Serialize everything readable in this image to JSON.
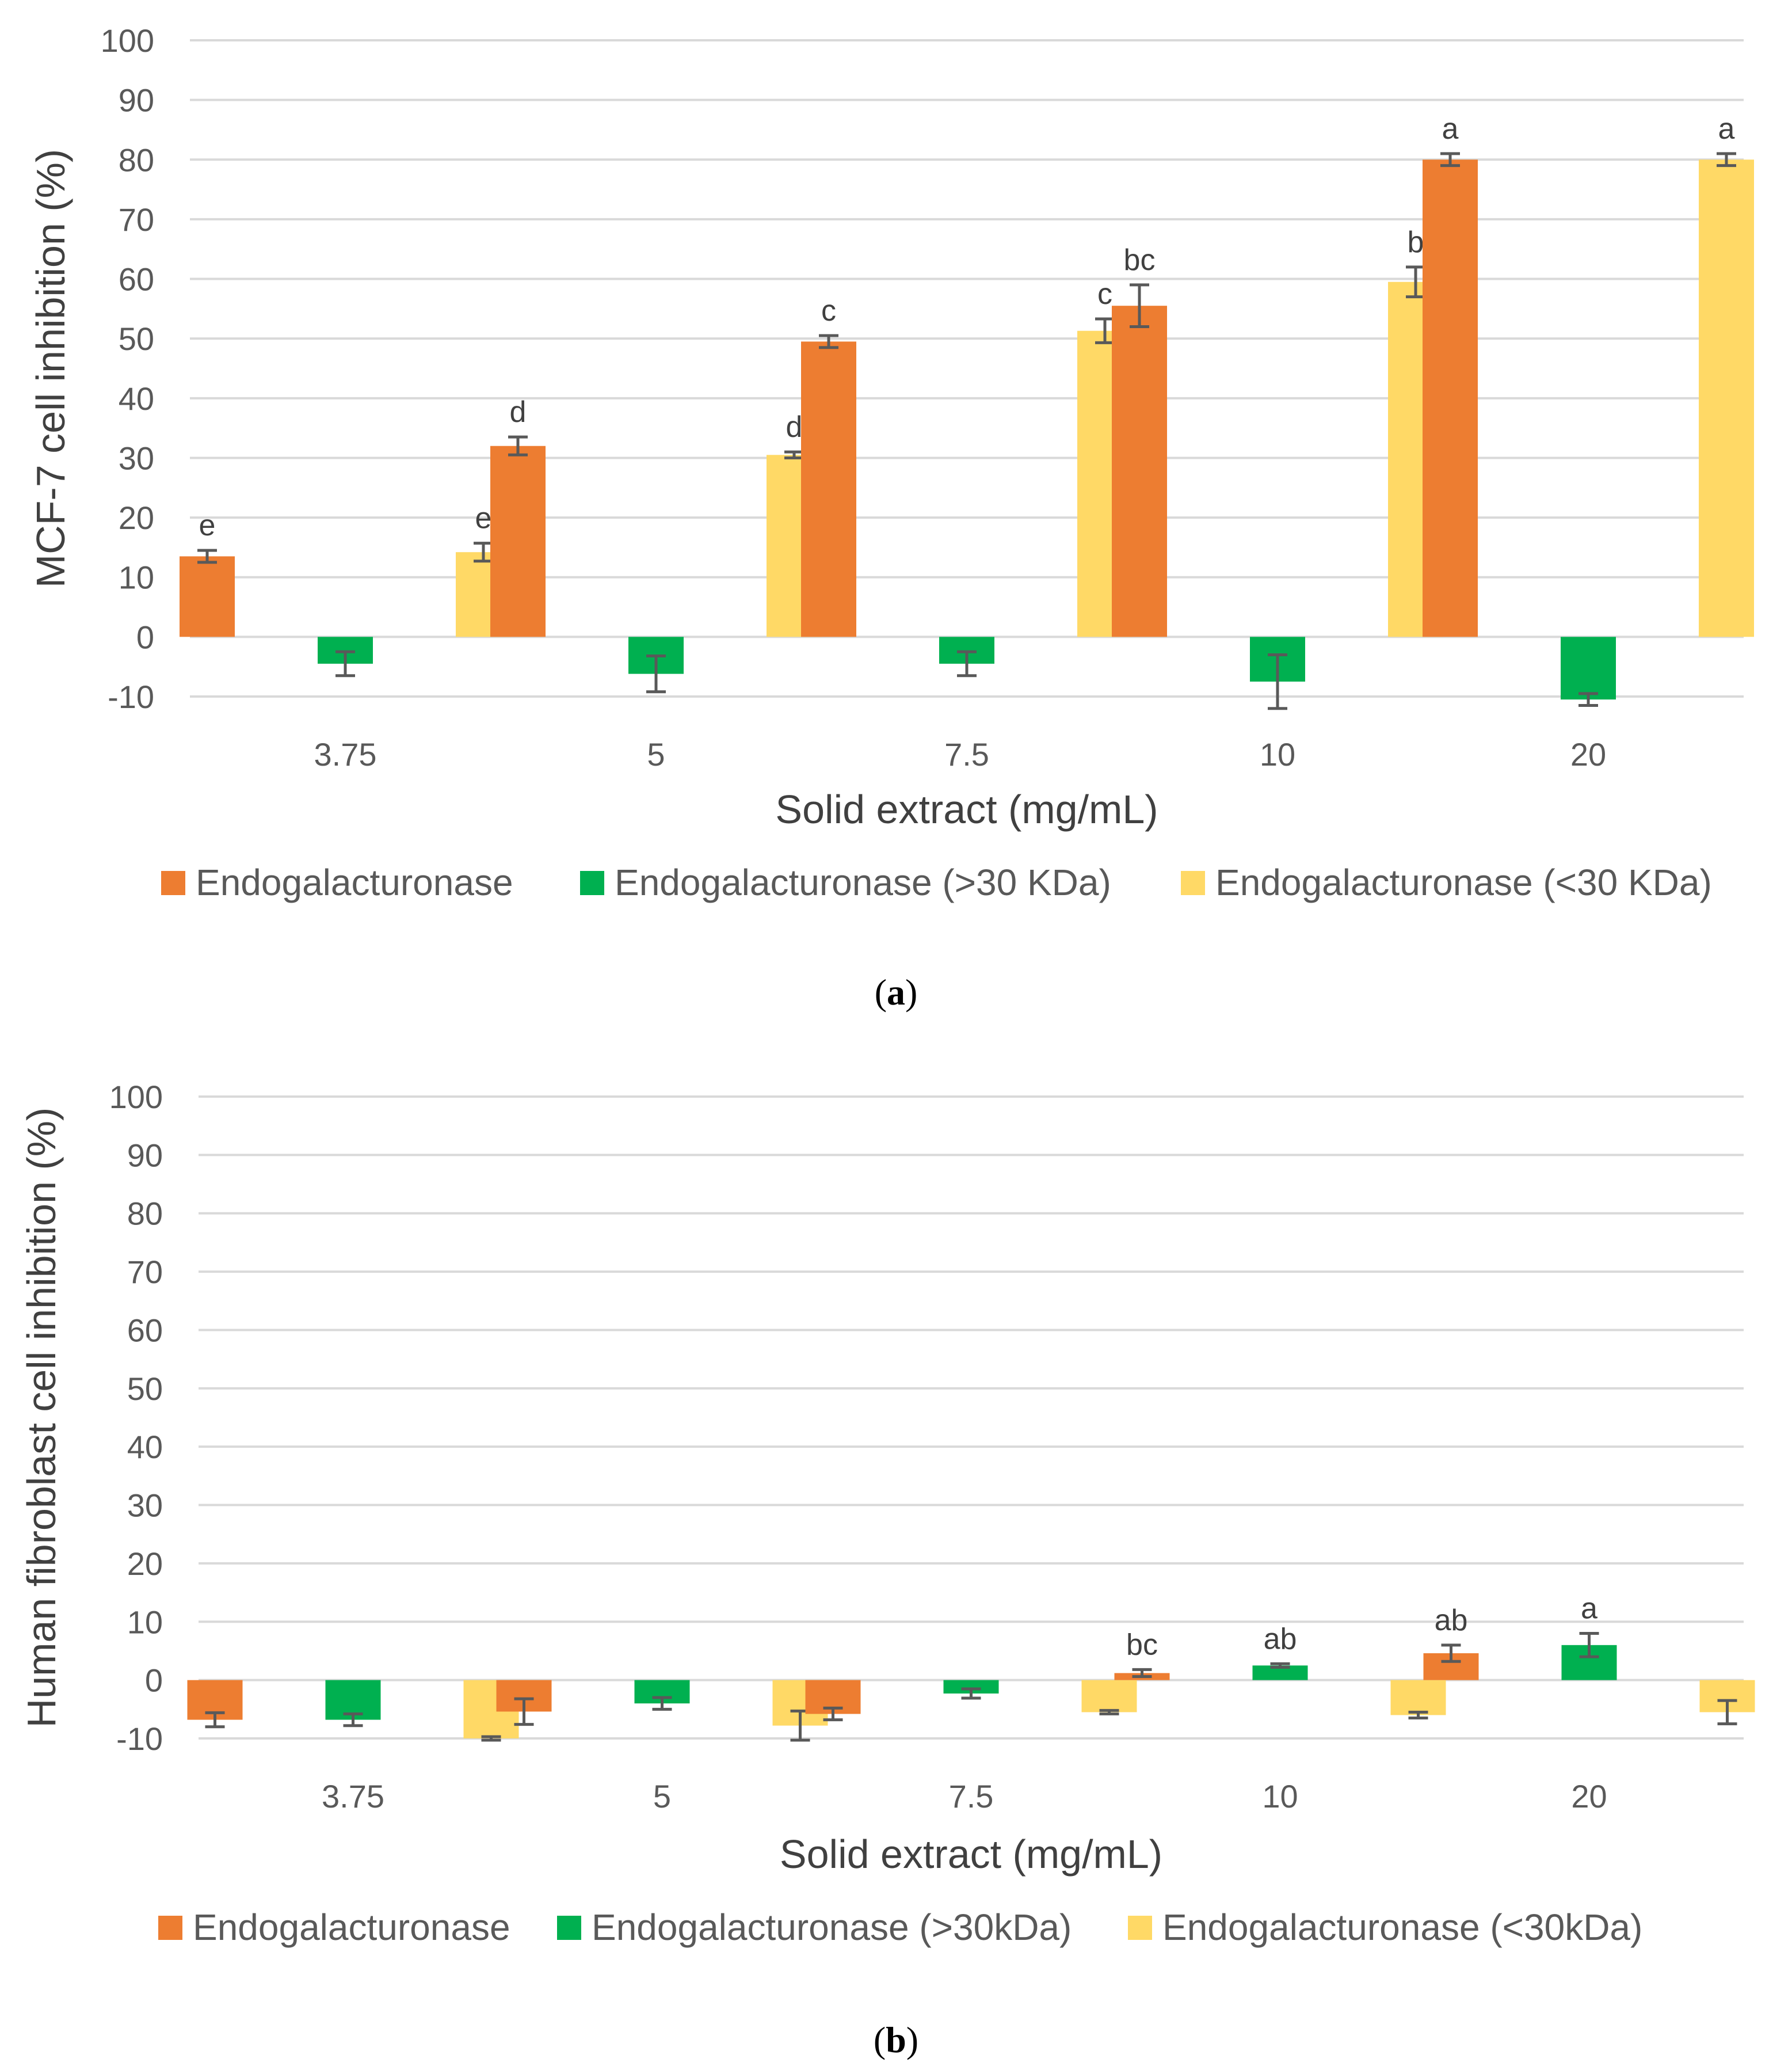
{
  "chart_data": [
    {
      "type": "bar",
      "caption": "a",
      "ylabel": "MCF-7 cell inhibition (%)",
      "xlabel": "Solid extract (mg/mL)",
      "categories": [
        "3.75",
        "5",
        "7.5",
        "10",
        "20"
      ],
      "ylim": [
        -10,
        100
      ],
      "yticks": [
        -10,
        0,
        10,
        20,
        30,
        40,
        50,
        60,
        70,
        80,
        90,
        100
      ],
      "grid": true,
      "legend_position": "bottom",
      "series": [
        {
          "name": "Endogalacturonase",
          "color": "#ED7D31",
          "values": [
            13.5,
            32,
            49.5,
            55.5,
            80
          ],
          "errors": [
            1,
            1.5,
            1,
            3.5,
            1
          ],
          "letters": [
            "e",
            "d",
            "c",
            "bc",
            "a"
          ]
        },
        {
          "name": "Endogalacturonase (>30 KDa)",
          "color": "#00B050",
          "values": [
            -4.5,
            -6.2,
            -4.5,
            -7.5,
            -10.5
          ],
          "errors": [
            2,
            3,
            2,
            4.5,
            1
          ],
          "letters": [
            "",
            "",
            "",
            "",
            ""
          ]
        },
        {
          "name": "Endogalacturonase (<30 KDa)",
          "color": "#FFD966",
          "values": [
            14.2,
            30.5,
            51.3,
            59.5,
            80
          ],
          "errors": [
            1.5,
            0.5,
            2,
            2.5,
            1
          ],
          "letters": [
            "e",
            "d",
            "c",
            "b",
            "a"
          ]
        }
      ]
    },
    {
      "type": "bar",
      "caption": "b",
      "ylabel": "Human fibroblast cell inhibition (%)",
      "xlabel": "Solid extract (mg/mL)",
      "categories": [
        "3.75",
        "5",
        "7.5",
        "10",
        "20"
      ],
      "ylim": [
        -10,
        100
      ],
      "yticks": [
        -10,
        0,
        10,
        20,
        30,
        40,
        50,
        60,
        70,
        80,
        90,
        100
      ],
      "grid": true,
      "legend_position": "bottom",
      "series": [
        {
          "name": "Endogalacturonase",
          "color": "#ED7D31",
          "values": [
            -6.8,
            -5.4,
            -5.8,
            1.2,
            4.6
          ],
          "errors": [
            1.2,
            2.2,
            1,
            0.6,
            1.4
          ],
          "letters": [
            "",
            "",
            "",
            "bc",
            "ab"
          ]
        },
        {
          "name": "Endogalacturonase (>30kDa)",
          "color": "#00B050",
          "values": [
            -6.8,
            -4,
            -2.3,
            2.5,
            6
          ],
          "errors": [
            1,
            1,
            0.8,
            0.3,
            2
          ],
          "letters": [
            "",
            "",
            "",
            "ab",
            "a"
          ]
        },
        {
          "name": "Endogalacturonase (<30kDa)",
          "color": "#FFD966",
          "values": [
            -10,
            -7.8,
            -5.5,
            -6,
            -5.5
          ],
          "errors": [
            0.3,
            2.5,
            0.3,
            0.5,
            2
          ],
          "letters": [
            "",
            "",
            "",
            "",
            ""
          ]
        }
      ]
    }
  ]
}
